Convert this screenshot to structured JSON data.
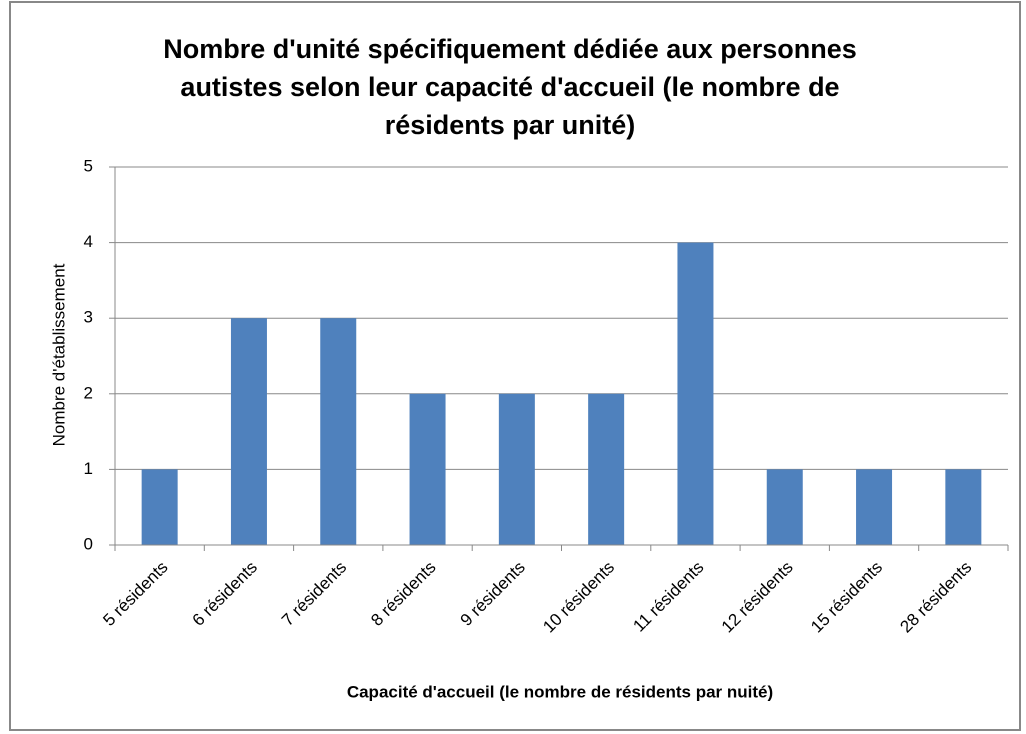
{
  "chart_data": {
    "type": "bar",
    "title": "Nombre d'unité spécifiquement dédiée aux personnes autistes selon leur capacité d'accueil (le nombre de résidents par unité)",
    "x_label": "Capacité d'accueil (le nombre de résidents par nuité)",
    "y_label": "Nombre d'établissement",
    "categories": [
      "5 résidents",
      "6 résidents",
      "7 résidents",
      "8 résidents",
      "9 résidents",
      "10 résidents",
      "11 résidents",
      "12 résidents",
      "15 résidents",
      "28 résidents"
    ],
    "values": [
      1,
      3,
      3,
      2,
      2,
      2,
      4,
      1,
      1,
      1
    ],
    "color": "#4f81bd",
    "ylim": [
      0,
      5
    ],
    "yticks": [
      0,
      1,
      2,
      3,
      4,
      5
    ],
    "grid": true
  }
}
